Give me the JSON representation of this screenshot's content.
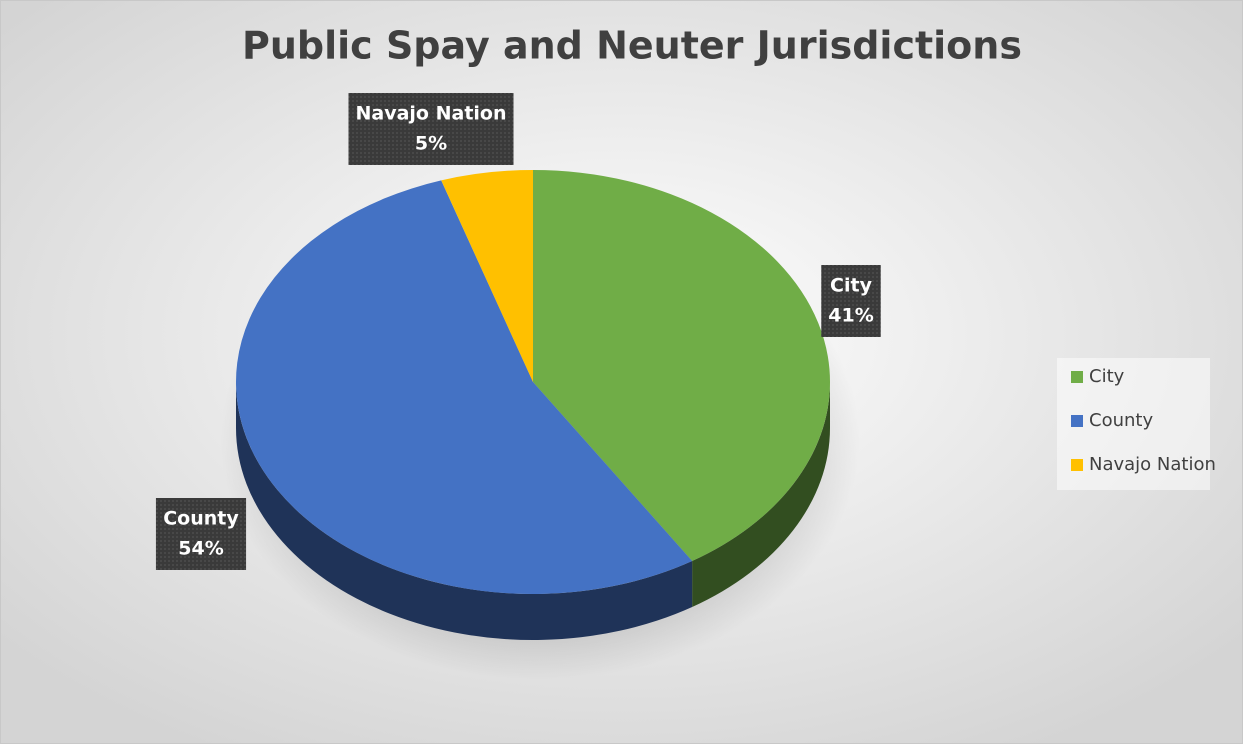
{
  "chart_data": {
    "type": "pie",
    "title": "Public Spay and Neuter Jurisdictions",
    "categories": [
      "City",
      "County",
      "Navajo Nation"
    ],
    "values": [
      41,
      54,
      5
    ],
    "value_labels": [
      "41%",
      "54%",
      "5%"
    ],
    "colors": [
      "#70ad47",
      "#4472c4",
      "#ffc000"
    ],
    "legend": "right"
  }
}
